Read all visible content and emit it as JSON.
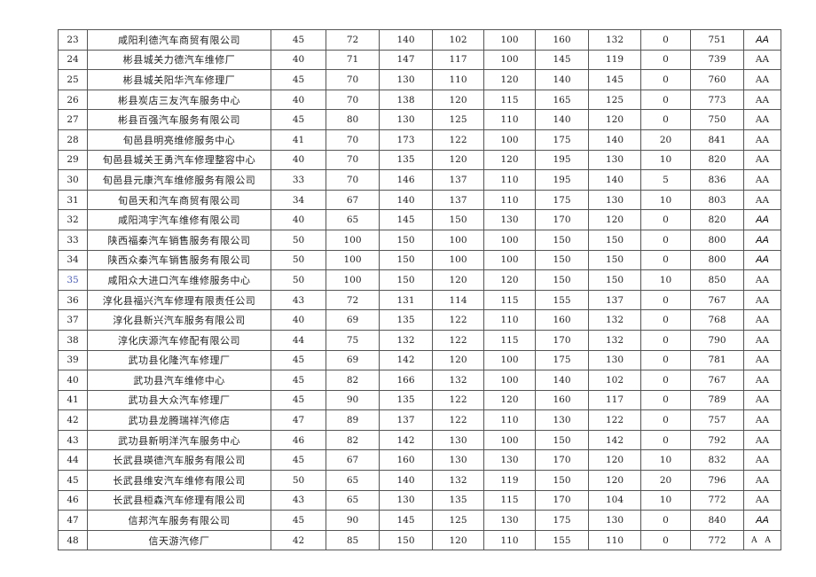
{
  "table": {
    "rows": [
      {
        "no": "23",
        "name": "咸阳利德汽车商贸有限公司",
        "values": [
          "45",
          "72",
          "140",
          "102",
          "100",
          "160",
          "132",
          "0"
        ],
        "total": "751",
        "grade": "AA",
        "grade_style": "italic"
      },
      {
        "no": "24",
        "name": "彬县城关力德汽车维修厂",
        "values": [
          "40",
          "71",
          "147",
          "117",
          "100",
          "145",
          "119",
          "0"
        ],
        "total": "739",
        "grade": "AA"
      },
      {
        "no": "25",
        "name": "彬县城关阳华汽车修理厂",
        "values": [
          "45",
          "70",
          "130",
          "110",
          "120",
          "140",
          "145",
          "0"
        ],
        "total": "760",
        "grade": "AA"
      },
      {
        "no": "26",
        "name": "彬县炭店三友汽车服务中心",
        "values": [
          "40",
          "70",
          "138",
          "120",
          "115",
          "165",
          "125",
          "0"
        ],
        "total": "773",
        "grade": "AA"
      },
      {
        "no": "27",
        "name": "彬县百强汽车服务有限公司",
        "values": [
          "45",
          "80",
          "130",
          "125",
          "110",
          "140",
          "120",
          "0"
        ],
        "total": "750",
        "grade": "AA"
      },
      {
        "no": "28",
        "name": "旬邑县明亮维修服务中心",
        "values": [
          "41",
          "70",
          "173",
          "122",
          "100",
          "175",
          "140",
          "20"
        ],
        "total": "841",
        "grade": "AA"
      },
      {
        "no": "29",
        "name": "旬邑县城关王勇汽车修理整容中心",
        "values": [
          "40",
          "70",
          "135",
          "120",
          "120",
          "195",
          "130",
          "10"
        ],
        "total": "820",
        "grade": "AA"
      },
      {
        "no": "30",
        "name": "旬邑县元康汽车维修服务有限公司",
        "values": [
          "33",
          "70",
          "146",
          "137",
          "110",
          "195",
          "140",
          "5"
        ],
        "total": "836",
        "grade": "AA"
      },
      {
        "no": "31",
        "name": "旬邑天和汽车商贸有限公司",
        "values": [
          "34",
          "67",
          "140",
          "137",
          "110",
          "175",
          "130",
          "10"
        ],
        "total": "803",
        "grade": "AA"
      },
      {
        "no": "32",
        "name": "咸阳鸿宇汽车维修有限公司",
        "values": [
          "40",
          "65",
          "145",
          "150",
          "130",
          "170",
          "120",
          "0"
        ],
        "total": "820",
        "grade": "AA",
        "grade_style": "italic"
      },
      {
        "no": "33",
        "name": "陕西福秦汽车销售服务有限公司",
        "values": [
          "50",
          "100",
          "150",
          "100",
          "100",
          "150",
          "150",
          "0"
        ],
        "total": "800",
        "grade": "AA",
        "grade_style": "italic"
      },
      {
        "no": "34",
        "name": "陕西众秦汽车销售服务有限公司",
        "values": [
          "50",
          "100",
          "150",
          "100",
          "100",
          "150",
          "150",
          "0"
        ],
        "total": "800",
        "grade": "AA",
        "grade_style": "italic"
      },
      {
        "no": "35",
        "name": "咸阳众大进口汽车维修服务中心",
        "values": [
          "50",
          "100",
          "150",
          "120",
          "120",
          "150",
          "150",
          "10"
        ],
        "total": "850",
        "grade": "AA",
        "no_color": "#4a5bb0"
      },
      {
        "no": "36",
        "name": "淳化县福兴汽车修理有限责任公司",
        "values": [
          "43",
          "72",
          "131",
          "114",
          "115",
          "155",
          "137",
          "0"
        ],
        "total": "767",
        "grade": "AA"
      },
      {
        "no": "37",
        "name": "淳化县新兴汽车服务有限公司",
        "values": [
          "40",
          "69",
          "135",
          "122",
          "110",
          "160",
          "132",
          "0"
        ],
        "total": "768",
        "grade": "AA"
      },
      {
        "no": "38",
        "name": "淳化庆源汽车修配有限公司",
        "values": [
          "44",
          "75",
          "132",
          "122",
          "115",
          "170",
          "132",
          "0"
        ],
        "total": "790",
        "grade": "AA"
      },
      {
        "no": "39",
        "name": "武功县化隆汽车修理厂",
        "values": [
          "45",
          "69",
          "142",
          "120",
          "100",
          "175",
          "130",
          "0"
        ],
        "total": "781",
        "grade": "AA"
      },
      {
        "no": "40",
        "name": "武功县汽车维修中心",
        "values": [
          "45",
          "82",
          "166",
          "132",
          "100",
          "140",
          "102",
          "0"
        ],
        "total": "767",
        "grade": "AA"
      },
      {
        "no": "41",
        "name": "武功县大众汽车修理厂",
        "values": [
          "45",
          "90",
          "135",
          "122",
          "120",
          "160",
          "117",
          "0"
        ],
        "total": "789",
        "grade": "AA"
      },
      {
        "no": "42",
        "name": "武功县龙腾瑞祥汽修店",
        "values": [
          "47",
          "89",
          "137",
          "122",
          "110",
          "130",
          "122",
          "0"
        ],
        "total": "757",
        "grade": "AA"
      },
      {
        "no": "43",
        "name": "武功县新明洋汽车服务中心",
        "values": [
          "46",
          "82",
          "142",
          "130",
          "100",
          "150",
          "142",
          "0"
        ],
        "total": "792",
        "grade": "AA"
      },
      {
        "no": "44",
        "name": "长武县瑛德汽车服务有限公司",
        "values": [
          "45",
          "67",
          "160",
          "130",
          "130",
          "170",
          "120",
          "10"
        ],
        "total": "832",
        "grade": "AA"
      },
      {
        "no": "45",
        "name": "长武县维安汽车维修有限公司",
        "values": [
          "50",
          "65",
          "140",
          "132",
          "119",
          "150",
          "120",
          "20"
        ],
        "total": "796",
        "grade": "AA"
      },
      {
        "no": "46",
        "name": "长武县桓森汽车修理有限公司",
        "values": [
          "43",
          "65",
          "130",
          "135",
          "115",
          "170",
          "104",
          "10"
        ],
        "total": "772",
        "grade": "AA"
      },
      {
        "no": "47",
        "name": "信邦汽车服务有限公司",
        "values": [
          "45",
          "90",
          "145",
          "125",
          "130",
          "175",
          "130",
          "0"
        ],
        "total": "840",
        "grade": "AA",
        "grade_style": "italic"
      },
      {
        "no": "48",
        "name": "信天游汽修厂",
        "values": [
          "42",
          "85",
          "150",
          "120",
          "110",
          "155",
          "110",
          "0"
        ],
        "total": "772",
        "grade": "A A",
        "grade_style": "spaced"
      }
    ]
  }
}
